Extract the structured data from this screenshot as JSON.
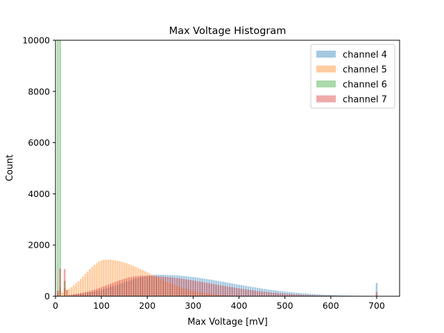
{
  "chart_data": {
    "type": "histogram",
    "title": "Max Voltage Histogram",
    "xlabel": "Max Voltage [mV]",
    "ylabel": "Count",
    "xlim": [
      0,
      750
    ],
    "ylim": [
      0,
      10000
    ],
    "xticks": [
      0,
      100,
      200,
      300,
      400,
      500,
      600,
      700
    ],
    "yticks": [
      0,
      2000,
      4000,
      6000,
      8000,
      10000
    ],
    "bin_width": 5,
    "legend_position": "top-right",
    "series": [
      {
        "name": "channel 4",
        "label": "channel 4",
        "color": "#1f77b4",
        "shape": {
          "start": 40,
          "end": 700,
          "peak_x": 225,
          "peak_y": 840,
          "rise": 80,
          "decay": 145,
          "tail_floor": 10
        },
        "spikes": [
          {
            "x": 700,
            "y": 520
          }
        ]
      },
      {
        "name": "channel 5",
        "label": "channel 5",
        "color": "#ff7f0e",
        "shape": {
          "start": 5,
          "end": 700,
          "peak_x": 110,
          "peak_y": 1430,
          "rise": 45,
          "decay": 90,
          "tail_floor": 10
        },
        "spikes": [
          {
            "x": 10,
            "y": 350
          },
          {
            "x": 20,
            "y": 330
          }
        ]
      },
      {
        "name": "channel 6",
        "label": "channel 6",
        "color": "#2ca02c",
        "shape": {
          "start": 5,
          "end": 30,
          "peak_x": 10,
          "peak_y": 0,
          "rise": 1,
          "decay": 1,
          "tail_floor": 0
        },
        "spikes": [
          {
            "x": 5,
            "y": 10000
          },
          {
            "x": 10,
            "y": 10000
          },
          {
            "x": 20,
            "y": 600
          }
        ]
      },
      {
        "name": "channel 7",
        "label": "channel 7",
        "color": "#d62728",
        "shape": {
          "start": 30,
          "end": 700,
          "peak_x": 190,
          "peak_y": 800,
          "rise": 70,
          "decay": 140,
          "tail_floor": 10
        },
        "spikes": [
          {
            "x": 5,
            "y": 220
          },
          {
            "x": 10,
            "y": 1080
          },
          {
            "x": 20,
            "y": 1060
          },
          {
            "x": 25,
            "y": 250
          },
          {
            "x": 700,
            "y": 160
          }
        ]
      }
    ]
  },
  "colors": {
    "background": "#ffffff",
    "axes": "#000000"
  }
}
